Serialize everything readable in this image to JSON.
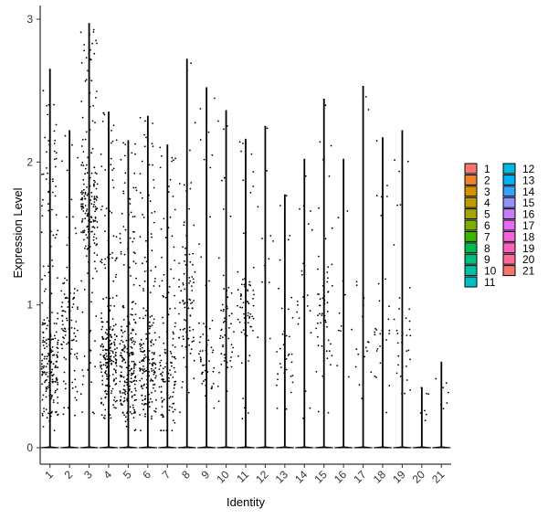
{
  "chart_data": {
    "type": "violin",
    "xlabel": "Identity",
    "ylabel": "Expression Level",
    "ylim": [
      -0.12,
      3.1
    ],
    "yticks": [
      0,
      1,
      2,
      3
    ],
    "grid": false,
    "legend_position": "right",
    "categories": [
      "1",
      "2",
      "3",
      "4",
      "5",
      "6",
      "7",
      "8",
      "9",
      "10",
      "11",
      "12",
      "13",
      "14",
      "15",
      "16",
      "17",
      "18",
      "19",
      "20",
      "21"
    ],
    "max_values": [
      2.65,
      2.22,
      2.97,
      2.35,
      2.15,
      2.32,
      2.12,
      2.72,
      2.52,
      2.36,
      2.16,
      2.25,
      1.77,
      2.02,
      2.44,
      2.02,
      2.53,
      2.17,
      2.22,
      0.42,
      0.6
    ],
    "point_center": [
      0.55,
      0.8,
      1.65,
      0.6,
      0.55,
      0.55,
      0.45,
      1.0,
      0.65,
      0.75,
      0.9,
      1.4,
      0.7,
      1.0,
      0.9,
      0.9,
      0.8,
      0.8,
      0.7,
      0.35,
      0.45
    ],
    "point_density": [
      1.0,
      0.45,
      0.9,
      1.0,
      1.0,
      0.8,
      0.55,
      0.4,
      0.25,
      0.25,
      0.3,
      0.05,
      0.15,
      0.1,
      0.25,
      0.05,
      0.08,
      0.12,
      0.15,
      0.03,
      0.03
    ],
    "legend": {
      "entries": [
        "1",
        "2",
        "3",
        "4",
        "5",
        "6",
        "7",
        "8",
        "9",
        "10",
        "11",
        "12",
        "13",
        "14",
        "15",
        "16",
        "17",
        "18",
        "19",
        "20",
        "21"
      ],
      "colors": [
        "#F8766D",
        "#EA8331",
        "#D89000",
        "#C09B00",
        "#A3A500",
        "#7CAE00",
        "#39B600",
        "#00BB4E",
        "#00BF7D",
        "#00C1A3",
        "#00BFC4",
        "#00BAE0",
        "#00B0F6",
        "#35A2FF",
        "#9590FF",
        "#C77CFF",
        "#E76BF3",
        "#FA62DB",
        "#FF62BC",
        "#FF6A98",
        "#F8766D"
      ]
    }
  }
}
